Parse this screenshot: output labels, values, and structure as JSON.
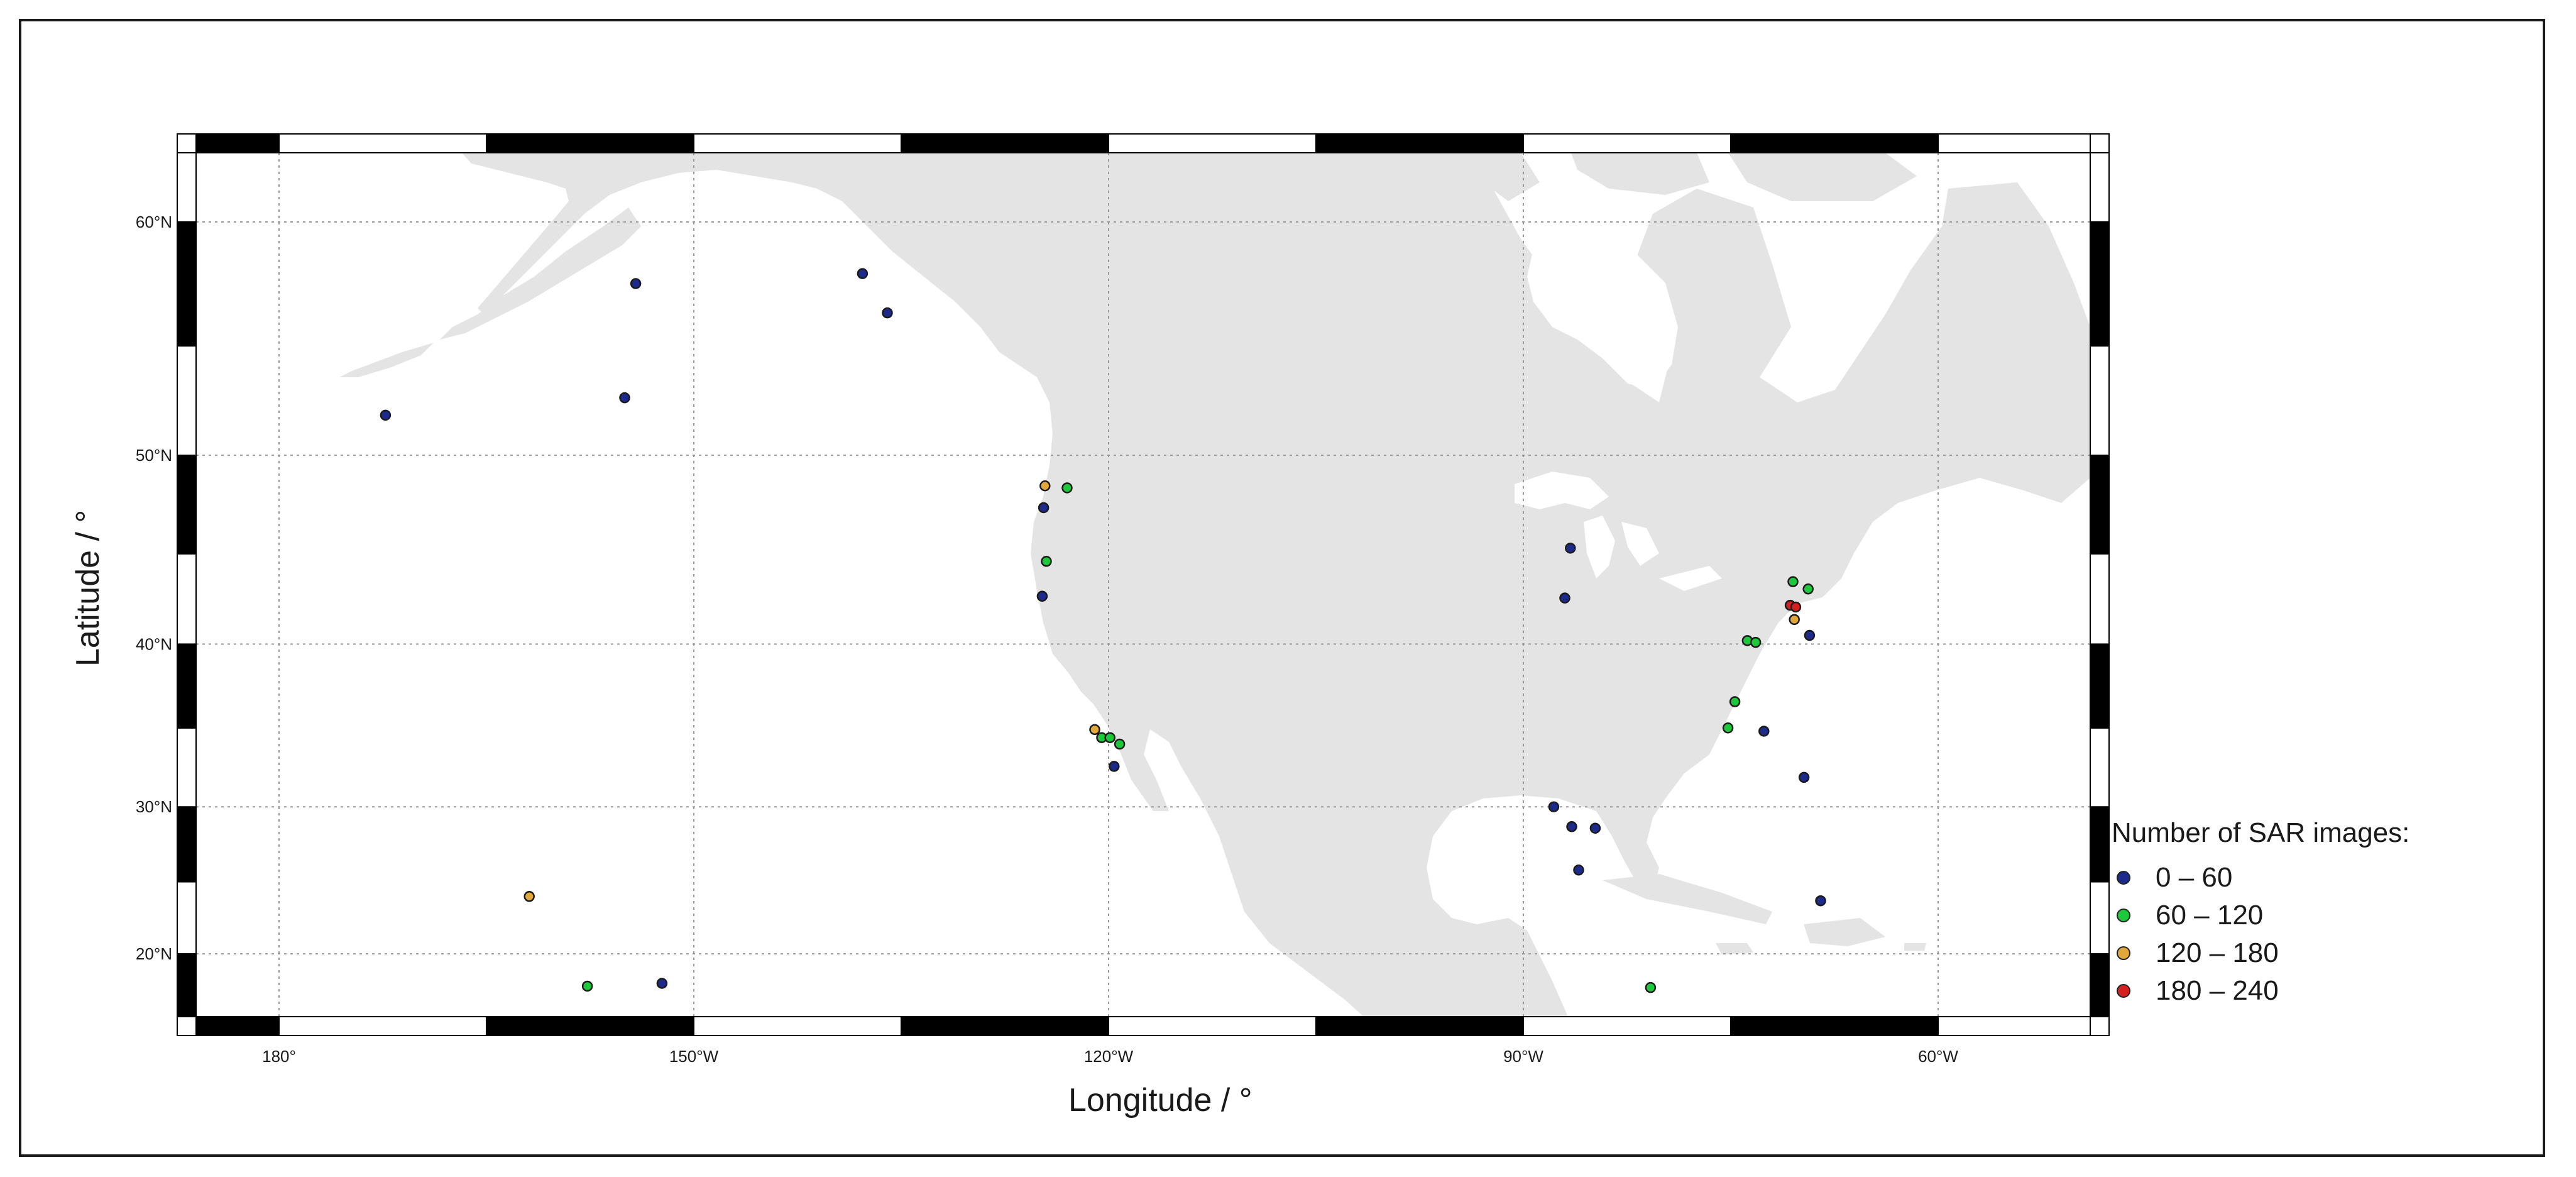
{
  "axes": {
    "x_title": "Longitude / °",
    "y_title": "Latitude / °",
    "x_range": [
      -186,
      -49
    ],
    "y_range": [
      15.5,
      62.5
    ],
    "x_ticks": [
      {
        "value": -180,
        "label": "180°"
      },
      {
        "value": -150,
        "label": "150°W"
      },
      {
        "value": -120,
        "label": "120°W"
      },
      {
        "value": -90,
        "label": "90°W"
      },
      {
        "value": -60,
        "label": "60°W"
      }
    ],
    "y_ticks": [
      {
        "value": 20,
        "label": "20°N"
      },
      {
        "value": 30,
        "label": "30°N"
      },
      {
        "value": 40,
        "label": "40°N"
      },
      {
        "value": 50,
        "label": "50°N"
      },
      {
        "value": 60,
        "label": "60°N"
      }
    ],
    "grid": true,
    "projection": "mercator"
  },
  "legend": {
    "title": "Number of  SAR images:",
    "placement": "bottom-right",
    "classes": [
      {
        "label": "0 – 60",
        "color": "#1c2a8c"
      },
      {
        "label": "60 – 120",
        "color": "#1ec83c"
      },
      {
        "label": "120 – 180",
        "color": "#e0a83a"
      },
      {
        "label": "180 – 240",
        "color": "#d42020"
      }
    ]
  },
  "colors": {
    "land": "#e4e4e4",
    "ocean": "#ffffff",
    "grid": "#999999"
  },
  "stations": [
    {
      "lon": -172.3,
      "lat": 51.9,
      "class": 0
    },
    {
      "lon": -155.0,
      "lat": 52.7,
      "class": 0
    },
    {
      "lon": -154.2,
      "lat": 57.6,
      "class": 0
    },
    {
      "lon": -137.8,
      "lat": 58.0,
      "class": 0
    },
    {
      "lon": -136.0,
      "lat": 56.4,
      "class": 0
    },
    {
      "lon": -124.6,
      "lat": 48.5,
      "class": 2
    },
    {
      "lon": -123.0,
      "lat": 48.4,
      "class": 1
    },
    {
      "lon": -124.7,
      "lat": 47.4,
      "class": 0
    },
    {
      "lon": -124.5,
      "lat": 44.6,
      "class": 1
    },
    {
      "lon": -124.8,
      "lat": 42.7,
      "class": 0
    },
    {
      "lon": -121.0,
      "lat": 34.9,
      "class": 2
    },
    {
      "lon": -120.5,
      "lat": 34.4,
      "class": 1
    },
    {
      "lon": -119.9,
      "lat": 34.4,
      "class": 1
    },
    {
      "lon": -119.2,
      "lat": 34.0,
      "class": 1
    },
    {
      "lon": -119.6,
      "lat": 32.6,
      "class": 0
    },
    {
      "lon": -161.9,
      "lat": 24.0,
      "class": 2
    },
    {
      "lon": -157.7,
      "lat": 17.7,
      "class": 1
    },
    {
      "lon": -152.3,
      "lat": 17.9,
      "class": 0
    },
    {
      "lon": -86.6,
      "lat": 45.3,
      "class": 0
    },
    {
      "lon": -87.0,
      "lat": 42.6,
      "class": 0
    },
    {
      "lon": -87.8,
      "lat": 30.0,
      "class": 0
    },
    {
      "lon": -86.5,
      "lat": 28.7,
      "class": 0
    },
    {
      "lon": -84.8,
      "lat": 28.6,
      "class": 0
    },
    {
      "lon": -86.0,
      "lat": 25.8,
      "class": 0
    },
    {
      "lon": -80.8,
      "lat": 17.6,
      "class": 1
    },
    {
      "lon": -70.5,
      "lat": 43.5,
      "class": 1
    },
    {
      "lon": -69.4,
      "lat": 43.1,
      "class": 1
    },
    {
      "lon": -70.7,
      "lat": 42.2,
      "class": 3
    },
    {
      "lon": -70.3,
      "lat": 42.1,
      "class": 3
    },
    {
      "lon": -70.4,
      "lat": 41.4,
      "class": 2
    },
    {
      "lon": -69.3,
      "lat": 40.5,
      "class": 0
    },
    {
      "lon": -73.8,
      "lat": 40.2,
      "class": 1
    },
    {
      "lon": -73.2,
      "lat": 40.1,
      "class": 1
    },
    {
      "lon": -74.7,
      "lat": 36.6,
      "class": 1
    },
    {
      "lon": -75.2,
      "lat": 35.0,
      "class": 1
    },
    {
      "lon": -72.6,
      "lat": 34.8,
      "class": 0
    },
    {
      "lon": -69.7,
      "lat": 31.9,
      "class": 0
    },
    {
      "lon": -68.5,
      "lat": 23.7,
      "class": 0
    }
  ]
}
